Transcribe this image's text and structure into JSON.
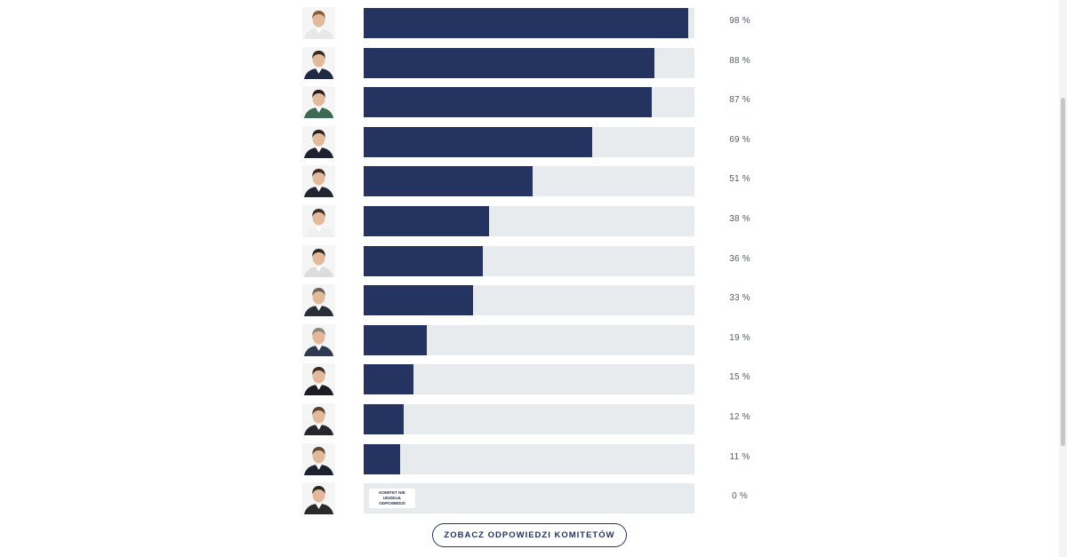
{
  "chart_data": {
    "type": "bar",
    "orientation": "horizontal",
    "xlim": [
      0,
      100
    ],
    "unit": "%",
    "values": [
      98,
      88,
      87,
      69,
      51,
      38,
      36,
      33,
      19,
      15,
      12,
      11,
      0
    ],
    "labels": [
      "98 %",
      "88 %",
      "87 %",
      "69 %",
      "51 %",
      "38 %",
      "36 %",
      "33 %",
      "19 %",
      "15 %",
      "12 %",
      "11 %",
      "0 %"
    ],
    "bar_color": "#24335f",
    "track_color": "#e8ebee",
    "no_answer_index": 12,
    "no_answer_text": "KOMITET NIE UDZIELIŁ ODPOWIEDZI"
  },
  "cta": {
    "label": "ZOBACZ ODPOWIEDZI KOMITETÓW"
  }
}
